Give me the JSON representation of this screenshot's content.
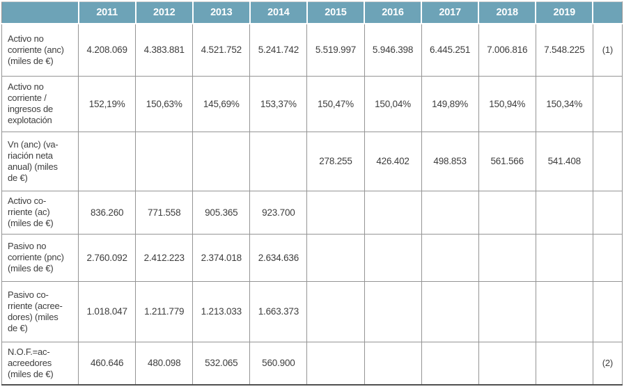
{
  "colors": {
    "header_background": "#6da3b7",
    "header_text": "#ffffff",
    "grid_border": "#949494",
    "bottom_border": "#4f4f4f",
    "body_text": "#3d3d3d"
  },
  "table": {
    "header": {
      "corner": "",
      "years": [
        "2011",
        "2012",
        "2013",
        "2014",
        "2015",
        "2016",
        "2017",
        "2018",
        "2019"
      ],
      "note_column": ""
    },
    "rows": [
      {
        "label": "Activo no\ncorriente (anc)\n(miles de €)",
        "values": [
          "4.208.069",
          "4.383.881",
          "4.521.752",
          "5.241.742",
          "5.519.997",
          "5.946.398",
          "6.445.251",
          "7.006.816",
          "7.548.225"
        ],
        "note": "(1)"
      },
      {
        "label": "Activo no\ncorriente /\ningresos de\nexplotación",
        "values": [
          "152,19%",
          "150,63%",
          "145,69%",
          "153,37%",
          "150,47%",
          "150,04%",
          "149,89%",
          "150,94%",
          "150,34%"
        ],
        "note": ""
      },
      {
        "label": "Vn (anc) (va-\nriación neta\nanual) (miles\nde €)",
        "values": [
          "",
          "",
          "",
          "",
          "278.255",
          "426.402",
          "498.853",
          "561.566",
          "541.408"
        ],
        "note": ""
      },
      {
        "label": "Activo co-\nrriente (ac)\n(miles de €)",
        "values": [
          "836.260",
          "771.558",
          "905.365",
          "923.700",
          "",
          "",
          "",
          "",
          ""
        ],
        "note": ""
      },
      {
        "label": "Pasivo no\ncorriente (pnc)\n(miles de €)",
        "values": [
          "2.760.092",
          "2.412.223",
          "2.374.018",
          "2.634.636",
          "",
          "",
          "",
          "",
          ""
        ],
        "note": ""
      },
      {
        "label": "Pasivo co-\nrriente (acree-\ndores) (miles\nde €)",
        "values": [
          "1.018.047",
          "1.211.779",
          "1.213.033",
          "1.663.373",
          "",
          "",
          "",
          "",
          ""
        ],
        "note": ""
      },
      {
        "label": "N.O.F.=ac-\nacreedores\n(miles de €)",
        "values": [
          "460.646",
          "480.098",
          "532.065",
          "560.900",
          "",
          "",
          "",
          "",
          ""
        ],
        "note": "(2)"
      }
    ]
  }
}
